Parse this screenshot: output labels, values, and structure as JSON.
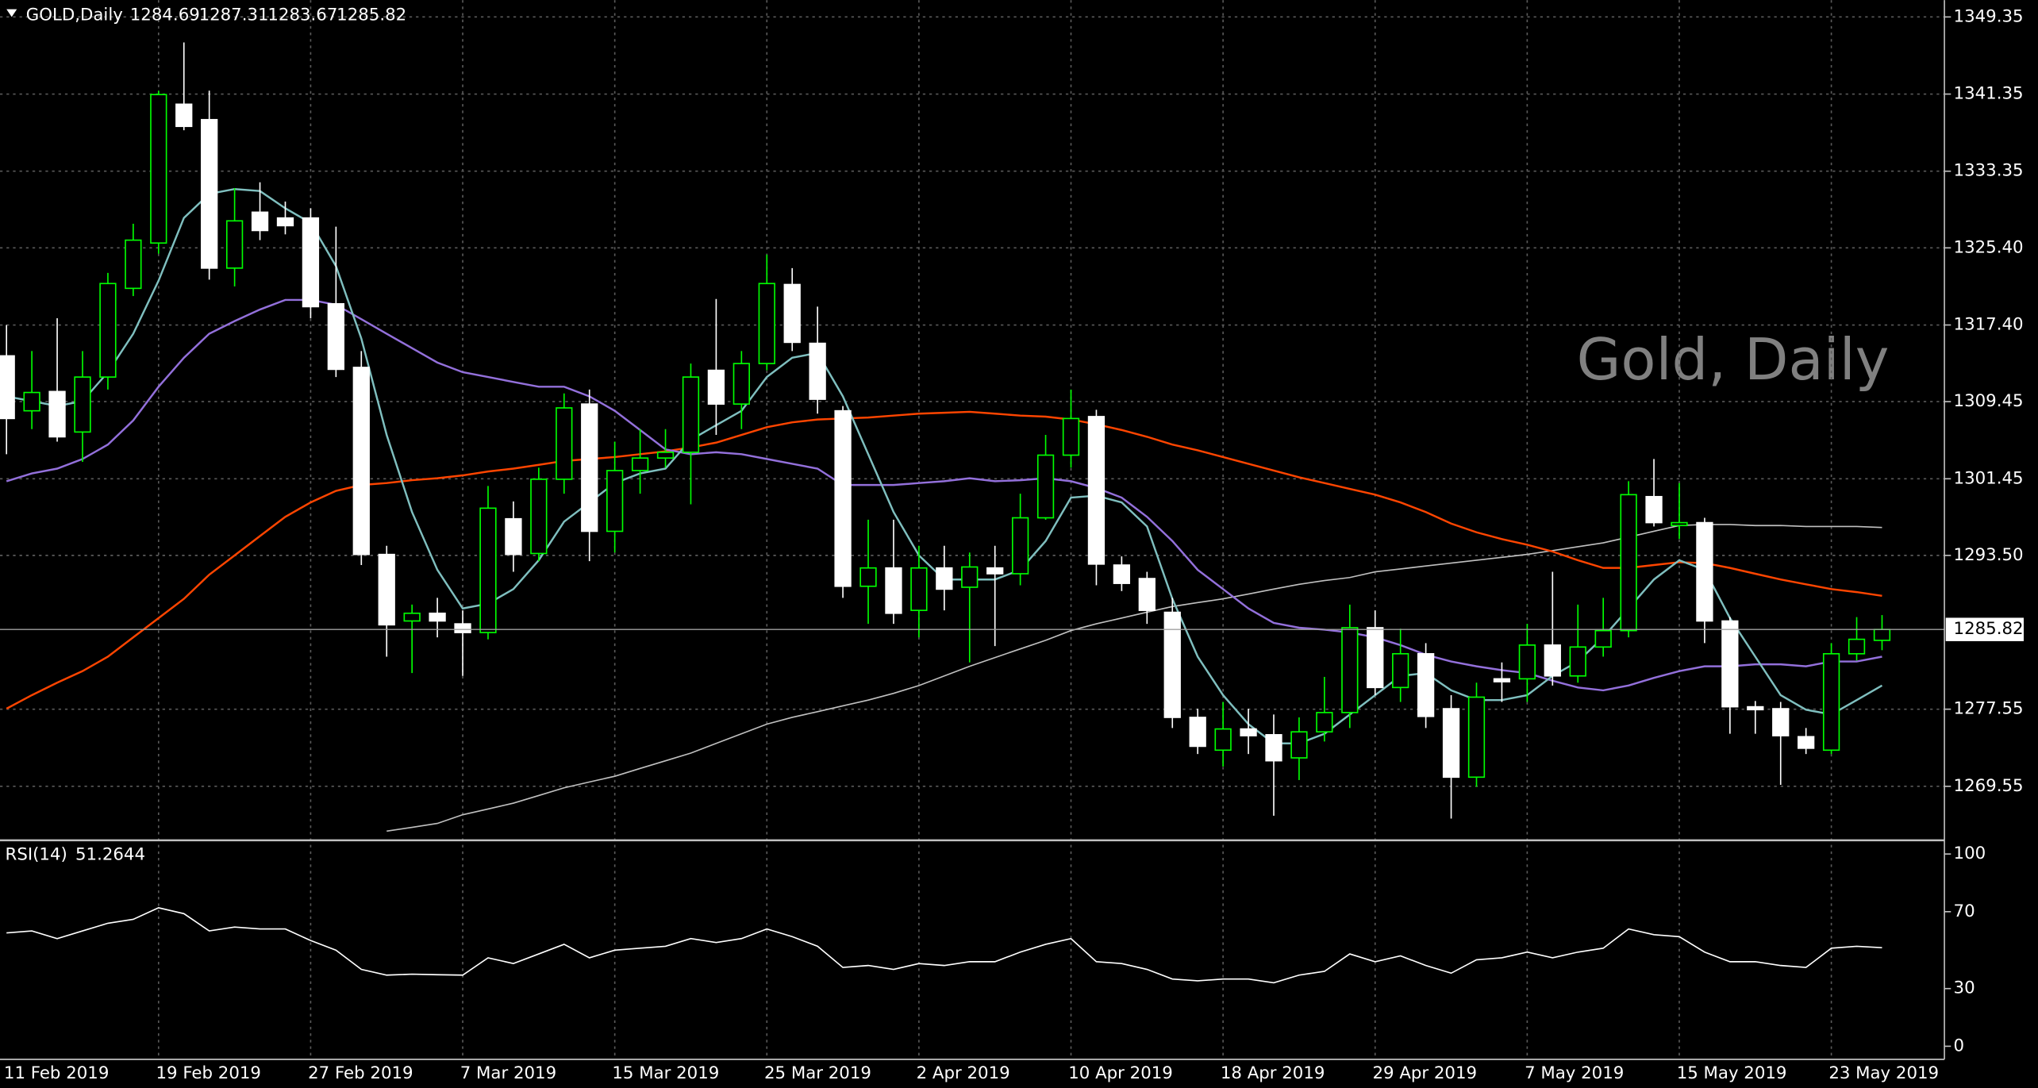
{
  "chart_data": [
    {
      "type": "candlestick",
      "title": "GOLD,Daily",
      "watermark": "Gold, Daily",
      "categories": [
        "11 Feb 2019",
        null,
        null,
        null,
        null,
        null,
        "19 Feb 2019",
        null,
        null,
        null,
        null,
        null,
        "27 Feb 2019",
        null,
        null,
        null,
        null,
        null,
        "7 Mar 2019",
        null,
        null,
        null,
        null,
        null,
        "15 Mar 2019",
        null,
        null,
        null,
        null,
        null,
        "25 Mar 2019",
        null,
        null,
        null,
        null,
        null,
        "2 Apr 2019",
        null,
        null,
        null,
        null,
        null,
        "10 Apr 2019",
        null,
        null,
        null,
        null,
        null,
        "18 Apr 2019",
        null,
        null,
        null,
        null,
        null,
        "29 Apr 2019",
        null,
        null,
        null,
        null,
        null,
        "7 May 2019",
        null,
        null,
        null,
        null,
        null,
        "15 May 2019",
        null,
        null,
        null,
        null,
        null,
        "23 May 2019",
        null,
        null
      ],
      "open": [
        1314.2,
        1308.5,
        1310.5,
        1306.3,
        1312.0,
        1321.2,
        1325.9,
        1340.3,
        1338.7,
        1323.3,
        1329.1,
        1328.5,
        1328.5,
        1319.6,
        1313.0,
        1293.6,
        1286.7,
        1287.5,
        1286.4,
        1285.5,
        1297.3,
        1293.7,
        1301.4,
        1309.2,
        1296.0,
        1302.3,
        1303.6,
        1304.2,
        1312.7,
        1309.2,
        1313.4,
        1321.6,
        1315.5,
        1308.5,
        1290.3,
        1292.2,
        1287.8,
        1292.2,
        1290.2,
        1292.2,
        1291.6,
        1297.4,
        1303.9,
        1307.9,
        1292.5,
        1291.1,
        1287.6,
        1276.7,
        1273.3,
        1275.5,
        1274.9,
        1272.5,
        1275.2,
        1277.2,
        1286.0,
        1279.8,
        1283.3,
        1277.6,
        1270.5,
        1280.7,
        1280.7,
        1284.2,
        1281.0,
        1284.0,
        1285.7,
        1299.6,
        1296.6,
        1296.9,
        1286.7,
        1277.8,
        1277.6,
        1274.7,
        1273.3,
        1283.3,
        1284.69
      ],
      "high": [
        1317.4,
        1314.7,
        1318.1,
        1314.7,
        1322.8,
        1327.9,
        1341.7,
        1346.7,
        1341.7,
        1331.6,
        1332.2,
        1330.2,
        1329.5,
        1327.6,
        1314.7,
        1294.5,
        1288.4,
        1289.1,
        1287.8,
        1300.7,
        1299.1,
        1302.6,
        1310.3,
        1310.7,
        1305.3,
        1306.6,
        1306.6,
        1313.4,
        1320.1,
        1314.7,
        1324.7,
        1323.3,
        1319.3,
        1309.0,
        1297.2,
        1297.2,
        1294.5,
        1294.5,
        1293.8,
        1294.5,
        1299.9,
        1306.0,
        1310.7,
        1308.6,
        1293.4,
        1291.8,
        1289.1,
        1277.6,
        1278.3,
        1277.6,
        1277.0,
        1276.7,
        1280.9,
        1288.4,
        1287.8,
        1285.9,
        1284.4,
        1279.0,
        1280.3,
        1282.4,
        1286.4,
        1291.8,
        1288.4,
        1289.1,
        1301.2,
        1303.5,
        1301.0,
        1297.4,
        1287.1,
        1278.4,
        1278.3,
        1275.6,
        1284.4,
        1287.1,
        1287.31
      ],
      "low": [
        1304.0,
        1306.6,
        1305.3,
        1303.2,
        1310.7,
        1320.4,
        1324.8,
        1337.6,
        1322.1,
        1321.4,
        1326.2,
        1326.8,
        1318.1,
        1312.0,
        1292.5,
        1283.0,
        1281.3,
        1285.0,
        1281.0,
        1284.8,
        1291.8,
        1292.9,
        1299.9,
        1292.9,
        1293.8,
        1299.9,
        1302.6,
        1298.8,
        1306.0,
        1306.6,
        1312.7,
        1314.7,
        1308.2,
        1289.1,
        1286.4,
        1286.4,
        1285.0,
        1287.8,
        1282.4,
        1284.1,
        1290.4,
        1297.2,
        1302.6,
        1290.4,
        1289.8,
        1286.4,
        1275.6,
        1272.9,
        1271.6,
        1272.9,
        1266.5,
        1270.2,
        1274.2,
        1275.6,
        1279.0,
        1278.3,
        1275.6,
        1266.2,
        1269.5,
        1278.3,
        1278.3,
        1280.0,
        1280.3,
        1283.0,
        1285.0,
        1296.5,
        1295.2,
        1284.4,
        1275.0,
        1275.0,
        1269.7,
        1272.9,
        1272.9,
        1282.6,
        1283.67
      ],
      "close": [
        1307.7,
        1310.4,
        1305.8,
        1312.0,
        1321.7,
        1326.2,
        1341.3,
        1338.0,
        1323.3,
        1328.2,
        1327.2,
        1327.7,
        1319.3,
        1312.8,
        1293.6,
        1286.3,
        1287.5,
        1286.7,
        1285.5,
        1298.4,
        1293.6,
        1301.4,
        1308.8,
        1296.0,
        1302.3,
        1303.6,
        1304.2,
        1312.0,
        1309.2,
        1313.4,
        1321.7,
        1315.6,
        1309.7,
        1290.3,
        1292.2,
        1287.5,
        1292.2,
        1290.0,
        1292.3,
        1291.6,
        1297.4,
        1303.9,
        1307.7,
        1292.6,
        1290.6,
        1287.8,
        1276.7,
        1273.7,
        1275.5,
        1274.8,
        1272.2,
        1275.2,
        1277.2,
        1286.0,
        1279.8,
        1283.3,
        1276.8,
        1270.5,
        1278.8,
        1280.4,
        1284.2,
        1281.0,
        1284.0,
        1285.7,
        1299.8,
        1296.9,
        1296.9,
        1286.7,
        1277.8,
        1277.5,
        1274.8,
        1273.5,
        1283.3,
        1284.8,
        1285.82
      ],
      "up_color": "#00ff00",
      "down_color": "#ffffff",
      "series": [
        {
          "color": "#c0c0c0",
          "values": [
            null,
            null,
            null,
            null,
            null,
            null,
            null,
            null,
            null,
            null,
            null,
            null,
            null,
            null,
            null,
            1264.9,
            1265.3,
            1265.7,
            1266.6,
            1267.2,
            1267.8,
            1268.6,
            1269.4,
            1270.0,
            1270.6,
            1271.4,
            1272.2,
            1273.0,
            1274.0,
            1275.0,
            1276.0,
            1276.7,
            1277.3,
            1277.9,
            1278.5,
            1279.2,
            1280.0,
            1281.0,
            1282.0,
            1282.9,
            1283.8,
            1284.7,
            1285.7,
            1286.4,
            1287.0,
            1287.6,
            1288.2,
            1288.6,
            1289.0,
            1289.5,
            1290.0,
            1290.5,
            1290.9,
            1291.2,
            1291.8,
            1292.1,
            1292.4,
            1292.7,
            1293.0,
            1293.3,
            1293.6,
            1294.0,
            1294.4,
            1294.8,
            1295.4,
            1296.0,
            1296.6,
            1296.7,
            1296.7,
            1296.6,
            1296.6,
            1296.5,
            1296.5,
            1296.5,
            1296.4
          ]
        },
        {
          "color": "#ff4500",
          "values": [
            1277.6,
            1279.0,
            1280.3,
            1281.5,
            1283.0,
            1285.0,
            1287.0,
            1289.0,
            1291.5,
            1293.5,
            1295.5,
            1297.5,
            1299.0,
            1300.2,
            1300.8,
            1301.0,
            1301.3,
            1301.5,
            1301.8,
            1302.2,
            1302.5,
            1302.9,
            1303.3,
            1303.5,
            1303.7,
            1304.0,
            1304.3,
            1304.7,
            1305.2,
            1306.0,
            1306.8,
            1307.3,
            1307.6,
            1307.7,
            1307.8,
            1308.0,
            1308.2,
            1308.3,
            1308.4,
            1308.2,
            1308.0,
            1307.9,
            1307.6,
            1307.1,
            1306.5,
            1305.8,
            1305.0,
            1304.4,
            1303.7,
            1303.0,
            1302.3,
            1301.6,
            1301.0,
            1300.4,
            1299.8,
            1299.0,
            1298.0,
            1296.8,
            1295.9,
            1295.2,
            1294.6,
            1293.9,
            1293.0,
            1292.2,
            1292.2,
            1292.5,
            1292.8,
            1292.7,
            1292.2,
            1291.6,
            1291.0,
            1290.5,
            1290.0,
            1289.7,
            1289.3
          ]
        },
        {
          "color": "#9370db",
          "values": [
            1301.2,
            1302.0,
            1302.5,
            1303.5,
            1305.0,
            1307.5,
            1311.0,
            1314.0,
            1316.5,
            1317.8,
            1319.0,
            1320.0,
            1320.0,
            1319.5,
            1318.0,
            1316.5,
            1315.0,
            1313.5,
            1312.5,
            1312.0,
            1311.5,
            1311.0,
            1311.0,
            1310.0,
            1308.5,
            1306.5,
            1304.5,
            1304.0,
            1304.2,
            1304.0,
            1303.5,
            1303.0,
            1302.5,
            1300.8,
            1300.8,
            1300.8,
            1301.0,
            1301.2,
            1301.5,
            1301.2,
            1301.3,
            1301.5,
            1301.2,
            1300.5,
            1299.5,
            1297.5,
            1295.0,
            1292.0,
            1290.0,
            1288.0,
            1286.5,
            1286.0,
            1285.8,
            1285.5,
            1285.0,
            1284.2,
            1283.2,
            1282.5,
            1282.0,
            1281.6,
            1281.3,
            1280.5,
            1279.8,
            1279.5,
            1280.0,
            1280.8,
            1281.5,
            1282.0,
            1282.0,
            1282.2,
            1282.2,
            1282.0,
            1282.5,
            1282.5,
            1283.0
          ]
        },
        {
          "color": "#7fbfbf",
          "values": [
            1310.0,
            1309.5,
            1309.0,
            1309.5,
            1312.5,
            1316.5,
            1322.0,
            1328.5,
            1331.0,
            1331.5,
            1331.3,
            1329.5,
            1328.0,
            1323.5,
            1316.0,
            1306.0,
            1298.0,
            1292.0,
            1288.0,
            1288.5,
            1290.0,
            1293.0,
            1297.0,
            1299.0,
            1301.0,
            1302.0,
            1302.5,
            1305.5,
            1307.0,
            1308.5,
            1312.0,
            1314.0,
            1314.5,
            1310.0,
            1304.0,
            1298.0,
            1293.5,
            1291.0,
            1291.0,
            1291.0,
            1292.0,
            1295.0,
            1299.5,
            1299.7,
            1299.0,
            1296.5,
            1289.0,
            1283.0,
            1279.0,
            1276.0,
            1274.0,
            1274.0,
            1275.0,
            1277.0,
            1279.0,
            1281.0,
            1281.3,
            1279.5,
            1278.5,
            1278.5,
            1279.0,
            1281.0,
            1282.5,
            1285.0,
            1288.0,
            1291.0,
            1293.0,
            1292.0,
            1287.0,
            1283.0,
            1279.0,
            1277.5,
            1277.0,
            1278.5,
            1280.0
          ]
        }
      ],
      "ylim": [
        1264.15,
        1351.1
      ],
      "yticks": [
        1349.35,
        1341.35,
        1333.35,
        {
          "value": 1325.4,
          "label": "1325.40"
        },
        {
          "value": 1317.4,
          "label": "1317.40"
        },
        1309.45,
        1301.45,
        {
          "value": 1293.5,
          "label": "1293.50"
        },
        1277.55,
        1269.55
      ],
      "grid": true
    },
    {
      "type": "line",
      "title": "RSI(14)",
      "color": "#ffffff",
      "values": [
        59,
        60,
        56,
        60,
        64,
        66,
        72,
        69,
        60,
        62,
        61,
        61,
        55,
        50,
        40,
        37,
        37.5,
        37.2,
        37,
        46,
        43,
        48,
        53,
        46,
        50,
        51,
        52,
        56,
        54,
        56,
        61,
        57,
        52,
        41,
        42,
        40,
        43,
        42,
        44,
        44,
        49,
        53,
        56,
        44,
        43,
        40,
        35,
        34,
        35,
        35,
        33,
        37,
        39,
        48,
        44,
        47,
        42,
        38,
        45,
        46,
        49,
        46,
        49,
        51,
        61,
        58,
        57,
        49,
        44,
        44,
        42,
        41,
        51,
        52,
        51.2644
      ],
      "ylim": [
        -6.8,
        106.1
      ],
      "yticks": [
        100,
        70,
        30,
        0
      ]
    }
  ]
}
